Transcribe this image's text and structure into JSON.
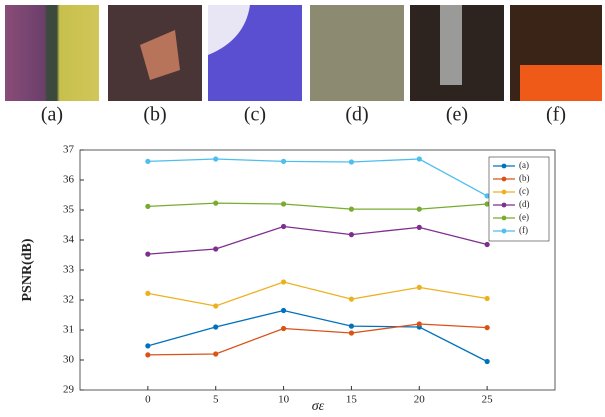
{
  "panels": [
    {
      "label": "(a)"
    },
    {
      "label": "(b)"
    },
    {
      "label": "(c)"
    },
    {
      "label": "(d)"
    },
    {
      "label": "(e)"
    },
    {
      "label": "(f)"
    }
  ],
  "chart_data": {
    "type": "line",
    "y_label": "PSNR(dB)",
    "x_label": "σε",
    "x": [
      0,
      5,
      10,
      15,
      20,
      25
    ],
    "xlim": [
      -5,
      30
    ],
    "xticks": [
      0,
      5,
      10,
      15,
      20,
      25
    ],
    "ylim": [
      29,
      37
    ],
    "yticks": [
      29,
      30,
      31,
      32,
      33,
      34,
      35,
      36,
      37
    ],
    "legend": "top-right",
    "series": [
      {
        "name": "(a)",
        "color": "#0072bd",
        "values": [
          30.47,
          31.1,
          31.65,
          31.13,
          31.1,
          29.95
        ]
      },
      {
        "name": "(b)",
        "color": "#d95319",
        "values": [
          30.17,
          30.2,
          31.05,
          30.9,
          31.2,
          31.08
        ]
      },
      {
        "name": "(c)",
        "color": "#edb120",
        "values": [
          32.22,
          31.8,
          32.6,
          32.03,
          32.42,
          32.05
        ]
      },
      {
        "name": "(d)",
        "color": "#7e2f8e",
        "values": [
          33.53,
          33.7,
          34.45,
          34.18,
          34.42,
          33.85
        ]
      },
      {
        "name": "(e)",
        "color": "#77ac30",
        "values": [
          35.12,
          35.23,
          35.2,
          35.03,
          35.03,
          35.2
        ]
      },
      {
        "name": "(f)",
        "color": "#4dbeee",
        "values": [
          36.62,
          36.7,
          36.62,
          36.6,
          36.7,
          35.47
        ]
      }
    ]
  }
}
